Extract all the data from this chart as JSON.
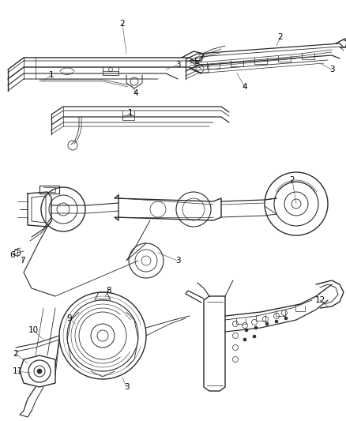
{
  "bg_color": "#ffffff",
  "line_color": "#2a2a2a",
  "label_color": "#000000",
  "fig_width": 4.38,
  "fig_height": 5.33,
  "dpi": 100
}
